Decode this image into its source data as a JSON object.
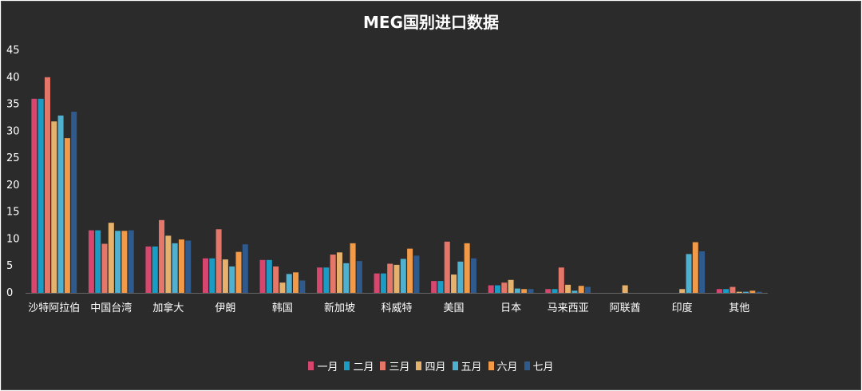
{
  "chart_data": {
    "type": "bar",
    "title": "MEG国别进口数据",
    "categories": [
      "沙特阿拉伯",
      "中国台湾",
      "加拿大",
      "伊朗",
      "韩国",
      "新加坡",
      "科威特",
      "美国",
      "日本",
      "马来西亚",
      "阿联酋",
      "印度",
      "其他"
    ],
    "ylim": [
      0,
      45
    ],
    "yticks": [
      0,
      5,
      10,
      15,
      20,
      25,
      30,
      35,
      40,
      45
    ],
    "grid": false,
    "legend_position": "bottom",
    "series": [
      {
        "name": "一月",
        "color": "#d6466f",
        "values": [
          36.0,
          11.6,
          8.6,
          6.4,
          6.1,
          4.7,
          3.6,
          2.2,
          1.4,
          0.7,
          0,
          0,
          0.7
        ]
      },
      {
        "name": "二月",
        "color": "#1a9cc4",
        "values": [
          36.0,
          11.6,
          8.6,
          6.4,
          6.1,
          4.7,
          3.6,
          2.2,
          1.4,
          0.7,
          0,
          0,
          0.7
        ]
      },
      {
        "name": "三月",
        "color": "#e4776a",
        "values": [
          40.0,
          9.1,
          13.5,
          11.8,
          4.9,
          7.1,
          5.4,
          9.5,
          1.9,
          4.7,
          0,
          0,
          1.1
        ]
      },
      {
        "name": "四月",
        "color": "#e6b16c",
        "values": [
          31.8,
          13.0,
          10.6,
          6.2,
          1.9,
          7.5,
          5.2,
          3.4,
          2.4,
          1.5,
          1.4,
          0.7,
          0.2
        ]
      },
      {
        "name": "五月",
        "color": "#4fb0cf",
        "values": [
          32.9,
          11.5,
          9.2,
          4.9,
          3.5,
          5.5,
          6.3,
          5.8,
          0.8,
          0.4,
          0,
          7.2,
          0.2
        ]
      },
      {
        "name": "六月",
        "color": "#f29a47",
        "values": [
          28.7,
          11.5,
          9.9,
          7.6,
          3.8,
          9.2,
          8.2,
          9.2,
          0.7,
          1.3,
          0,
          9.4,
          0.4
        ]
      },
      {
        "name": "七月",
        "color": "#2e5a8e",
        "values": [
          33.6,
          11.6,
          9.7,
          9.0,
          2.3,
          5.9,
          6.9,
          6.4,
          0.7,
          1.1,
          0,
          7.7,
          0.2
        ]
      }
    ]
  }
}
